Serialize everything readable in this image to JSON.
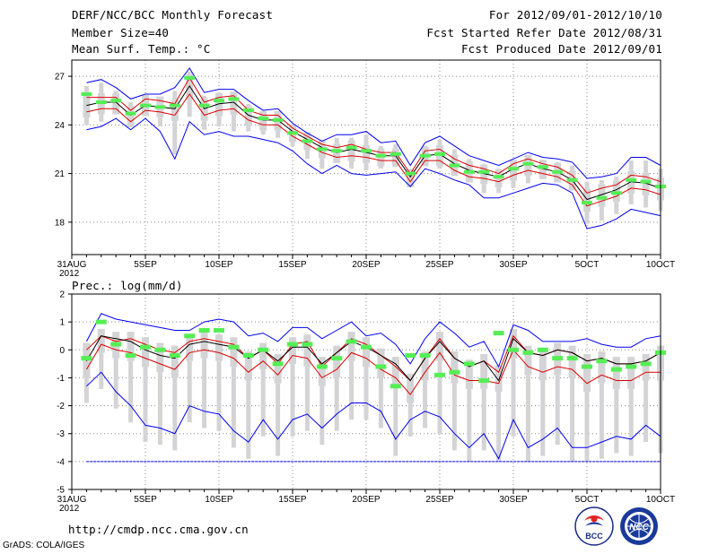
{
  "header": {
    "title": "DERF/NCC/BCC Monthly Forecast",
    "member_size": "Member Size=40",
    "variable": "Mean Surf. Temp.: °C",
    "period": "For 2012/09/01-2012/10/10",
    "started": "Fcst Started Refer Date 2012/08/31",
    "produced": "Fcst Produced Date 2012/09/01"
  },
  "footer": {
    "url": "http://cmdp.ncc.cma.gov.cn",
    "credit": "GrADS: COLA/IGES",
    "logo_bcc_label": "BCC",
    "logo_ncc_label": "NCC"
  },
  "colors": {
    "envelope": "#0000ee",
    "percentile": "#dd0000",
    "median": "#000000",
    "observed": "#55ee55",
    "box": "#d4d4d6",
    "grid": "#888888"
  },
  "chart_data": [
    {
      "type": "line",
      "panel": "top",
      "title": "Mean Surf. Temp.: °C",
      "ylim": [
        16,
        28
      ],
      "yticks": [
        18,
        21,
        24,
        27
      ],
      "xlim": [
        0,
        40
      ],
      "xticks": [
        0,
        5,
        10,
        15,
        20,
        25,
        30,
        35,
        40
      ],
      "xtick_labels": [
        "31AUG\n2012",
        "5SEP",
        "10SEP",
        "15SEP",
        "20SEP",
        "25SEP",
        "30SEP",
        "5OCT",
        "10OCT"
      ],
      "grid": true,
      "x": [
        1,
        2,
        3,
        4,
        5,
        6,
        7,
        8,
        9,
        10,
        11,
        12,
        13,
        14,
        15,
        16,
        17,
        18,
        19,
        20,
        21,
        22,
        23,
        24,
        25,
        26,
        27,
        28,
        29,
        30,
        31,
        32,
        33,
        34,
        35,
        36,
        37,
        38,
        39,
        40
      ],
      "series": [
        {
          "name": "max",
          "values": [
            26.6,
            26.8,
            26.3,
            25.6,
            25.9,
            25.9,
            26.3,
            27.5,
            26.0,
            26.2,
            26.2,
            25.5,
            24.9,
            25.0,
            24.1,
            23.5,
            23.0,
            23.4,
            23.4,
            23.6,
            22.9,
            23.0,
            21.5,
            22.9,
            23.3,
            22.7,
            22.1,
            21.8,
            21.5,
            21.9,
            22.3,
            22.0,
            21.9,
            21.7,
            20.7,
            20.8,
            21.0,
            22.0,
            22.0,
            21.5
          ]
        },
        {
          "name": "p75",
          "values": [
            25.7,
            25.7,
            25.7,
            24.9,
            25.6,
            25.5,
            25.3,
            26.9,
            25.4,
            25.7,
            25.8,
            24.9,
            24.6,
            24.6,
            23.8,
            23.3,
            22.8,
            22.6,
            22.8,
            22.5,
            22.3,
            22.3,
            21.0,
            22.4,
            22.5,
            21.9,
            21.5,
            21.3,
            21.0,
            21.6,
            21.9,
            21.6,
            21.4,
            20.9,
            19.8,
            20.1,
            20.3,
            20.9,
            20.8,
            20.5
          ]
        },
        {
          "name": "median",
          "values": [
            25.2,
            25.4,
            25.4,
            24.6,
            25.2,
            25.1,
            25.0,
            26.4,
            25.0,
            25.3,
            25.4,
            24.6,
            24.3,
            24.3,
            23.6,
            23.1,
            22.6,
            22.3,
            22.5,
            22.3,
            22.1,
            22.1,
            20.8,
            22.1,
            22.2,
            21.6,
            21.2,
            21.0,
            20.8,
            21.3,
            21.6,
            21.3,
            21.1,
            20.6,
            19.4,
            19.7,
            20.0,
            20.5,
            20.4,
            20.1
          ]
        },
        {
          "name": "p25",
          "values": [
            24.8,
            25.0,
            25.0,
            24.2,
            24.9,
            24.8,
            24.6,
            25.9,
            24.6,
            24.9,
            25.0,
            24.3,
            24.0,
            24.0,
            23.3,
            22.8,
            22.3,
            22.0,
            22.1,
            22.0,
            21.8,
            21.8,
            20.5,
            21.8,
            21.8,
            21.2,
            20.8,
            20.7,
            20.5,
            20.9,
            21.2,
            21.0,
            20.8,
            20.3,
            19.0,
            19.3,
            19.6,
            20.1,
            20.0,
            19.7
          ]
        },
        {
          "name": "min",
          "values": [
            23.7,
            23.9,
            24.4,
            23.7,
            24.4,
            23.6,
            21.9,
            24.2,
            23.4,
            23.6,
            23.3,
            23.3,
            23.1,
            22.9,
            22.4,
            21.6,
            21.0,
            21.5,
            21.0,
            20.9,
            21.0,
            21.1,
            20.2,
            21.3,
            21.0,
            20.6,
            20.3,
            19.5,
            19.5,
            19.8,
            20.1,
            20.4,
            20.3,
            19.8,
            17.6,
            17.8,
            18.2,
            18.8,
            18.6,
            18.4
          ]
        },
        {
          "name": "observed",
          "values": [
            25.9,
            25.4,
            25.5,
            24.7,
            25.2,
            25.1,
            25.2,
            26.9,
            25.2,
            25.5,
            25.6,
            24.9,
            24.4,
            24.3,
            23.5,
            23.0,
            22.5,
            22.4,
            22.6,
            22.4,
            22.1,
            22.2,
            21.0,
            22.1,
            22.2,
            21.5,
            21.1,
            21.1,
            20.8,
            21.3,
            21.6,
            21.4,
            21.1,
            20.6,
            19.2,
            19.5,
            19.8,
            20.6,
            20.5,
            20.2
          ]
        }
      ]
    },
    {
      "type": "line",
      "panel": "bottom",
      "title": "Prec.: log(mm/d)",
      "ylim": [
        -5,
        2
      ],
      "yticks": [
        -5,
        -4,
        -3,
        -2,
        -1,
        0,
        1,
        2
      ],
      "xlim": [
        0,
        40
      ],
      "xticks": [
        0,
        5,
        10,
        15,
        20,
        25,
        30,
        35,
        40
      ],
      "xtick_labels": [
        "31AUG\n2012",
        "5SEP",
        "10SEP",
        "15SEP",
        "20SEP",
        "25SEP",
        "30SEP",
        "5OCT",
        "10OCT"
      ],
      "grid": true,
      "x": [
        1,
        2,
        3,
        4,
        5,
        6,
        7,
        8,
        9,
        10,
        11,
        12,
        13,
        14,
        15,
        16,
        17,
        18,
        19,
        20,
        21,
        22,
        23,
        24,
        25,
        26,
        27,
        28,
        29,
        30,
        31,
        32,
        33,
        34,
        35,
        36,
        37,
        38,
        39,
        40
      ],
      "series": [
        {
          "name": "max",
          "values": [
            0.3,
            1.3,
            1.1,
            1.0,
            0.9,
            0.8,
            0.7,
            0.7,
            1.0,
            1.1,
            1.0,
            0.5,
            0.6,
            0.3,
            0.8,
            0.8,
            0.4,
            0.7,
            1.0,
            0.5,
            0.6,
            0.2,
            -0.5,
            0.4,
            1.0,
            0.6,
            0.1,
            0.3,
            -0.6,
            0.9,
            0.7,
            0.3,
            0.3,
            0.3,
            0.4,
            0.2,
            0.1,
            0.1,
            0.4,
            0.5
          ]
        },
        {
          "name": "p75",
          "values": [
            0.0,
            0.5,
            0.3,
            0.4,
            0.2,
            0.0,
            -0.1,
            0.3,
            0.4,
            0.3,
            0.2,
            -0.3,
            0.0,
            -0.5,
            0.2,
            0.3,
            -0.6,
            -0.1,
            0.4,
            0.2,
            -0.2,
            -0.6,
            -1.1,
            -0.3,
            0.4,
            -0.3,
            -0.6,
            -0.4,
            -0.8,
            0.5,
            -0.1,
            -0.2,
            0.0,
            -0.1,
            -0.4,
            -0.3,
            -0.5,
            -0.5,
            -0.4,
            -0.1
          ]
        },
        {
          "name": "median",
          "values": [
            -0.4,
            0.5,
            0.4,
            0.3,
            0.0,
            -0.2,
            -0.3,
            0.2,
            0.3,
            0.2,
            0.1,
            -0.3,
            0.0,
            -0.4,
            0.1,
            0.1,
            -0.5,
            -0.1,
            0.3,
            0.1,
            -0.2,
            -0.5,
            -1.1,
            -0.3,
            0.3,
            -0.3,
            -0.6,
            -0.4,
            -1.1,
            0.4,
            -0.1,
            -0.2,
            0.0,
            -0.1,
            -0.4,
            -0.3,
            -0.5,
            -0.5,
            -0.4,
            -0.1
          ]
        },
        {
          "name": "p25",
          "values": [
            -0.7,
            0.2,
            0.0,
            -0.1,
            -0.3,
            -0.5,
            -0.7,
            -0.1,
            0.0,
            -0.1,
            -0.3,
            -0.8,
            -0.4,
            -0.9,
            -0.2,
            -0.3,
            -1.0,
            -0.7,
            -0.1,
            -0.3,
            -0.7,
            -1.0,
            -1.6,
            -0.8,
            -0.1,
            -0.9,
            -1.1,
            -1.1,
            -1.2,
            0.0,
            -0.6,
            -0.8,
            -0.6,
            -0.7,
            -1.2,
            -0.9,
            -1.1,
            -1.1,
            -0.8,
            -0.8
          ]
        },
        {
          "name": "min",
          "values": [
            -1.3,
            -0.8,
            -1.5,
            -2.0,
            -2.7,
            -2.8,
            -3.0,
            -2.0,
            -2.2,
            -2.3,
            -2.9,
            -3.3,
            -2.5,
            -3.2,
            -2.5,
            -2.3,
            -2.8,
            -2.3,
            -1.9,
            -1.9,
            -2.2,
            -3.2,
            -2.5,
            -2.2,
            -2.4,
            -3.0,
            -3.5,
            -3.0,
            -3.9,
            -2.5,
            -3.5,
            -3.2,
            -2.8,
            -3.5,
            -3.5,
            -3.3,
            -3.1,
            -3.2,
            -2.7,
            -3.1
          ]
        },
        {
          "name": "observed",
          "values": [
            -0.3,
            1.0,
            0.2,
            -0.2,
            0.1,
            0.0,
            -0.2,
            0.5,
            0.7,
            0.7,
            0.1,
            -0.2,
            0.0,
            -0.5,
            0.2,
            0.2,
            -0.6,
            -0.3,
            0.3,
            0.1,
            -0.6,
            -1.3,
            -0.2,
            -0.2,
            -0.9,
            -0.8,
            -0.5,
            -1.1,
            0.6,
            0.0,
            -0.1,
            0.0,
            -0.3,
            -0.3,
            -0.6,
            -0.4,
            -0.7,
            -0.6,
            -0.5,
            -0.1
          ]
        },
        {
          "name": "lower_limit",
          "values": [
            -4,
            -4,
            -4,
            -4,
            -4,
            -4,
            -4,
            -4,
            -4,
            -4,
            -4,
            -4,
            -4,
            -4,
            -4,
            -4,
            -4,
            -4,
            -4,
            -4,
            -4,
            -4,
            -4,
            -4,
            -4,
            -4,
            -4,
            -4,
            -4,
            -4,
            -4,
            -4,
            -4,
            -4,
            -4,
            -4,
            -4,
            -4,
            -4,
            -4
          ]
        }
      ]
    }
  ]
}
